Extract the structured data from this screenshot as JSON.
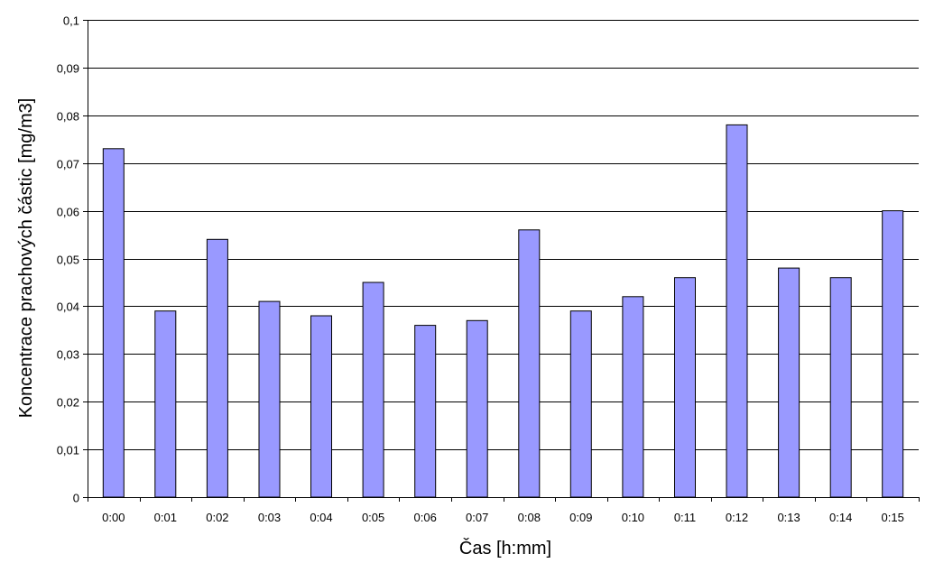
{
  "chart_data": {
    "type": "bar",
    "title": "",
    "xlabel": "Čas [h:mm]",
    "ylabel": "Koncentrace prachových částic [mg/m3]",
    "ylim": [
      0,
      0.1
    ],
    "ytick_step": 0.01,
    "ytick_labels": [
      "0",
      "0,01",
      "0,02",
      "0,03",
      "0,04",
      "0,05",
      "0,06",
      "0,07",
      "0,08",
      "0,09",
      "0,1"
    ],
    "grid": true,
    "legend": "none",
    "categories": [
      "0:00",
      "0:01",
      "0:02",
      "0:03",
      "0:04",
      "0:05",
      "0:06",
      "0:07",
      "0:08",
      "0:09",
      "0:10",
      "0:11",
      "0:12",
      "0:13",
      "0:14",
      "0:15"
    ],
    "values": [
      0.073,
      0.039,
      0.054,
      0.041,
      0.038,
      0.045,
      0.036,
      0.037,
      0.056,
      0.039,
      0.042,
      0.046,
      0.078,
      0.048,
      0.046,
      0.06
    ],
    "bar_color": "#9999FF",
    "bar_edge_color": "#000000",
    "grid_color": "#000000"
  }
}
